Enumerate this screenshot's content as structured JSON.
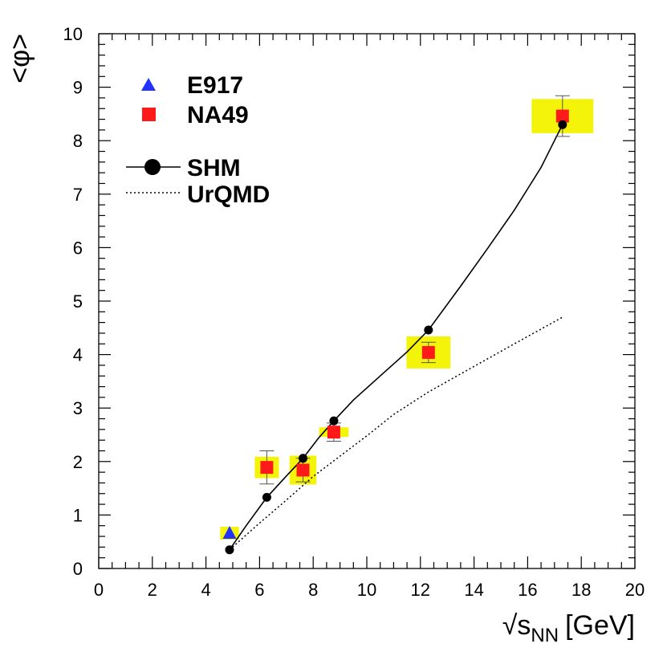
{
  "chart_data": {
    "type": "scatter",
    "xlabel_prefix": "√s",
    "xlabel_sub": "NN",
    "xlabel_unit": "[GeV]",
    "ylabel": "<φ>",
    "xlim": [
      0,
      20
    ],
    "ylim": [
      0,
      10
    ],
    "xticks": [
      "0",
      "2",
      "4",
      "6",
      "8",
      "10",
      "12",
      "14",
      "16",
      "18",
      "20"
    ],
    "yticks": [
      "0",
      "1",
      "2",
      "3",
      "4",
      "5",
      "6",
      "7",
      "8",
      "9",
      "10"
    ],
    "legend_position": "top-left",
    "series": [
      {
        "name": "E917",
        "kind": "marker",
        "marker": "triangle",
        "color": "#2233ff",
        "points": [
          {
            "x": 4.88,
            "y": 0.66,
            "err": 0,
            "sys_x": 0.35,
            "sys_y": 0.12
          }
        ]
      },
      {
        "name": "NA49",
        "kind": "marker",
        "marker": "square",
        "color": "#ff1a1a",
        "sys_color": "#f4f40a",
        "points": [
          {
            "x": 6.27,
            "y": 1.89,
            "err": 0.31,
            "sys_x": 0.45,
            "sys_y": 0.2
          },
          {
            "x": 7.62,
            "y": 1.84,
            "err": 0.22,
            "sys_x": 0.5,
            "sys_y": 0.27
          },
          {
            "x": 8.77,
            "y": 2.55,
            "err": 0.17,
            "sys_x": 0.55,
            "sys_y": 0.09
          },
          {
            "x": 12.3,
            "y": 4.04,
            "err": 0.19,
            "sys_x": 0.82,
            "sys_y": 0.3
          },
          {
            "x": 17.3,
            "y": 8.46,
            "err": 0.38,
            "sys_x": 1.15,
            "sys_y": 0.32
          }
        ]
      },
      {
        "name": "SHM",
        "kind": "line-marker",
        "marker": "circle",
        "color": "#000000",
        "points": [
          {
            "x": 4.88,
            "y": 0.35
          },
          {
            "x": 6.27,
            "y": 1.33
          },
          {
            "x": 7.62,
            "y": 2.06
          },
          {
            "x": 8.77,
            "y": 2.76
          },
          {
            "x": 12.3,
            "y": 4.46
          },
          {
            "x": 17.3,
            "y": 8.3
          }
        ],
        "curve": [
          {
            "x": 4.88,
            "y": 0.35
          },
          {
            "x": 5.5,
            "y": 0.8
          },
          {
            "x": 6.27,
            "y": 1.33
          },
          {
            "x": 7.0,
            "y": 1.73
          },
          {
            "x": 7.62,
            "y": 2.06
          },
          {
            "x": 8.2,
            "y": 2.44
          },
          {
            "x": 8.77,
            "y": 2.76
          },
          {
            "x": 9.5,
            "y": 3.15
          },
          {
            "x": 10.5,
            "y": 3.6
          },
          {
            "x": 11.5,
            "y": 4.05
          },
          {
            "x": 12.3,
            "y": 4.46
          },
          {
            "x": 13.5,
            "y": 5.28
          },
          {
            "x": 14.5,
            "y": 5.98
          },
          {
            "x": 15.5,
            "y": 6.7
          },
          {
            "x": 16.5,
            "y": 7.5
          },
          {
            "x": 17.3,
            "y": 8.3
          }
        ]
      },
      {
        "name": "UrQMD",
        "kind": "dotted-line",
        "color": "#000000",
        "curve": [
          {
            "x": 4.88,
            "y": 0.35
          },
          {
            "x": 6.0,
            "y": 0.85
          },
          {
            "x": 7.0,
            "y": 1.28
          },
          {
            "x": 8.0,
            "y": 1.72
          },
          {
            "x": 9.0,
            "y": 2.1
          },
          {
            "x": 10.0,
            "y": 2.48
          },
          {
            "x": 11.0,
            "y": 2.88
          },
          {
            "x": 12.3,
            "y": 3.3
          },
          {
            "x": 14.0,
            "y": 3.78
          },
          {
            "x": 15.5,
            "y": 4.2
          },
          {
            "x": 17.3,
            "y": 4.7
          }
        ]
      }
    ]
  }
}
